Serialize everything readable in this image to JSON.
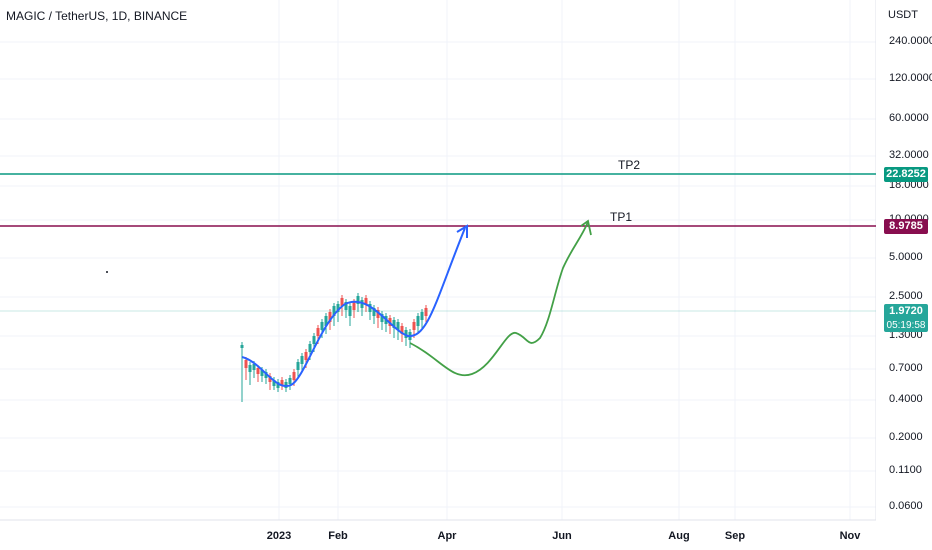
{
  "header": {
    "title": "MAGIC / TetherUS, 1D, BINANCE"
  },
  "price_axis": {
    "unit": "USDT",
    "ticks": [
      "240.0000",
      "120.0000",
      "60.0000",
      "32.0000",
      "18.0000",
      "10.0000",
      "5.0000",
      "2.5000",
      "1.3000",
      "0.7000",
      "0.4000",
      "0.2000",
      "0.1100",
      "0.0600"
    ]
  },
  "time_axis": {
    "ticks": [
      {
        "label": "2023",
        "bold": true
      },
      {
        "label": "Feb",
        "bold": true
      },
      {
        "label": "Apr",
        "bold": true
      },
      {
        "label": "Jun",
        "bold": true
      },
      {
        "label": "Aug",
        "bold": true
      },
      {
        "label": "Sep",
        "bold": true
      },
      {
        "label": "Nov",
        "bold": true
      }
    ]
  },
  "levels": {
    "tp2": {
      "label": "TP2",
      "price_tag": "22.8252",
      "color": "#089981"
    },
    "tp1": {
      "label": "TP1",
      "price_tag": "8.9785",
      "color": "#880e4f"
    }
  },
  "last_price": {
    "value": "1.9720",
    "countdown": "05:19:58",
    "color": "#26a69a"
  },
  "colors": {
    "up": "#26a69a",
    "down": "#ef5350",
    "projection_up": "#2962ff",
    "projection_alt": "#43a047"
  }
}
